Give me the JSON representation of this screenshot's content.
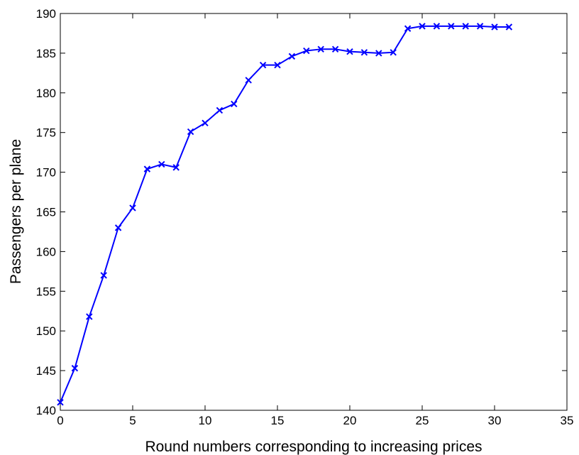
{
  "chart_data": {
    "type": "line",
    "title": "",
    "xlabel": "Round numbers corresponding to increasing prices",
    "ylabel": "Passengers per plane",
    "xlim": [
      0,
      35
    ],
    "ylim": [
      140,
      190
    ],
    "xticks": [
      0,
      5,
      10,
      15,
      20,
      25,
      30,
      35
    ],
    "yticks": [
      140,
      145,
      150,
      155,
      160,
      165,
      170,
      175,
      180,
      185,
      190
    ],
    "grid": false,
    "legend": "none",
    "series": [
      {
        "color": "#0000ff",
        "marker": "x",
        "x": [
          0,
          1,
          2,
          3,
          4,
          5,
          6,
          7,
          8,
          9,
          10,
          11,
          12,
          13,
          14,
          15,
          16,
          17,
          18,
          19,
          20,
          21,
          22,
          23,
          24,
          25,
          26,
          27,
          28,
          29,
          30,
          31
        ],
        "y": [
          141.0,
          145.3,
          151.8,
          157.0,
          163.0,
          165.5,
          170.4,
          171.0,
          170.6,
          175.1,
          176.2,
          177.8,
          178.6,
          181.6,
          183.5,
          183.5,
          184.6,
          185.3,
          185.5,
          185.5,
          185.2,
          185.1,
          185.0,
          185.1,
          188.1,
          188.4,
          188.4,
          188.4,
          188.4,
          188.4,
          188.3,
          188.3
        ]
      }
    ]
  }
}
